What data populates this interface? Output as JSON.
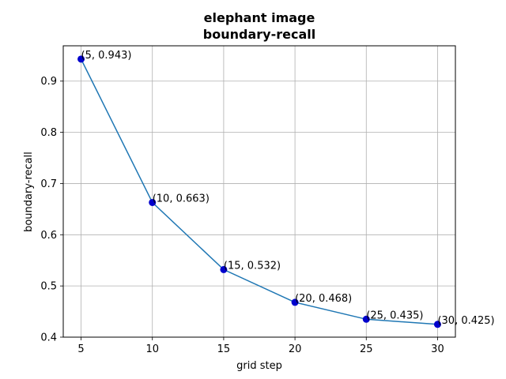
{
  "chart_data": {
    "type": "line",
    "title_line1": "elephant image",
    "title_line2": "boundary-recall",
    "xlabel": "grid step",
    "ylabel": "boundary-recall",
    "x": [
      5,
      10,
      15,
      20,
      25,
      30
    ],
    "y": [
      0.943,
      0.663,
      0.532,
      0.468,
      0.435,
      0.425
    ],
    "point_labels": [
      "(5, 0.943)",
      "(10, 0.663)",
      "(15, 0.532)",
      "(20, 0.468)",
      "(25, 0.435)",
      "(30, 0.425)"
    ],
    "xticks": [
      "5",
      "10",
      "15",
      "20",
      "25",
      "30"
    ],
    "yticks": [
      "0.4",
      "0.5",
      "0.6",
      "0.7",
      "0.8",
      "0.9"
    ],
    "xlim": [
      3.75,
      31.25
    ],
    "ylim": [
      0.4,
      0.969
    ],
    "grid": true,
    "line_color": "#1f77b4",
    "marker_color": "#0000cd"
  }
}
